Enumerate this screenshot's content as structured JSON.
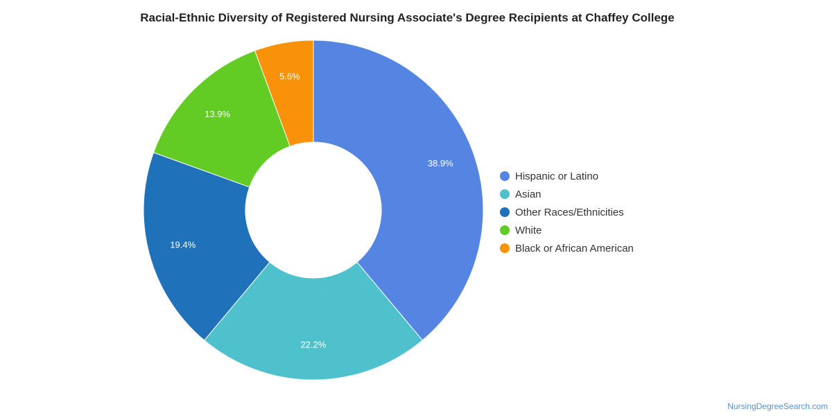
{
  "title": "Racial-Ethnic Diversity of Registered Nursing Associate's Degree Recipients at Chaffey College",
  "credit": "NursingDegreeSearch.com",
  "chart_data": {
    "type": "pie",
    "donut": true,
    "legend_position": "right",
    "slices": [
      {
        "name": "Hispanic or Latino",
        "value": 38.9,
        "label": "38.9%",
        "color": "#5485e2"
      },
      {
        "name": "Asian",
        "value": 22.2,
        "label": "22.2%",
        "color": "#4fc1cd"
      },
      {
        "name": "Other Races/Ethnicities",
        "value": 19.4,
        "label": "19.4%",
        "color": "#1f72ba"
      },
      {
        "name": "White",
        "value": 13.9,
        "label": "13.9%",
        "color": "#62cb24"
      },
      {
        "name": "Black or African American",
        "value": 5.6,
        "label": "5.6%",
        "color": "#f99208"
      }
    ]
  }
}
